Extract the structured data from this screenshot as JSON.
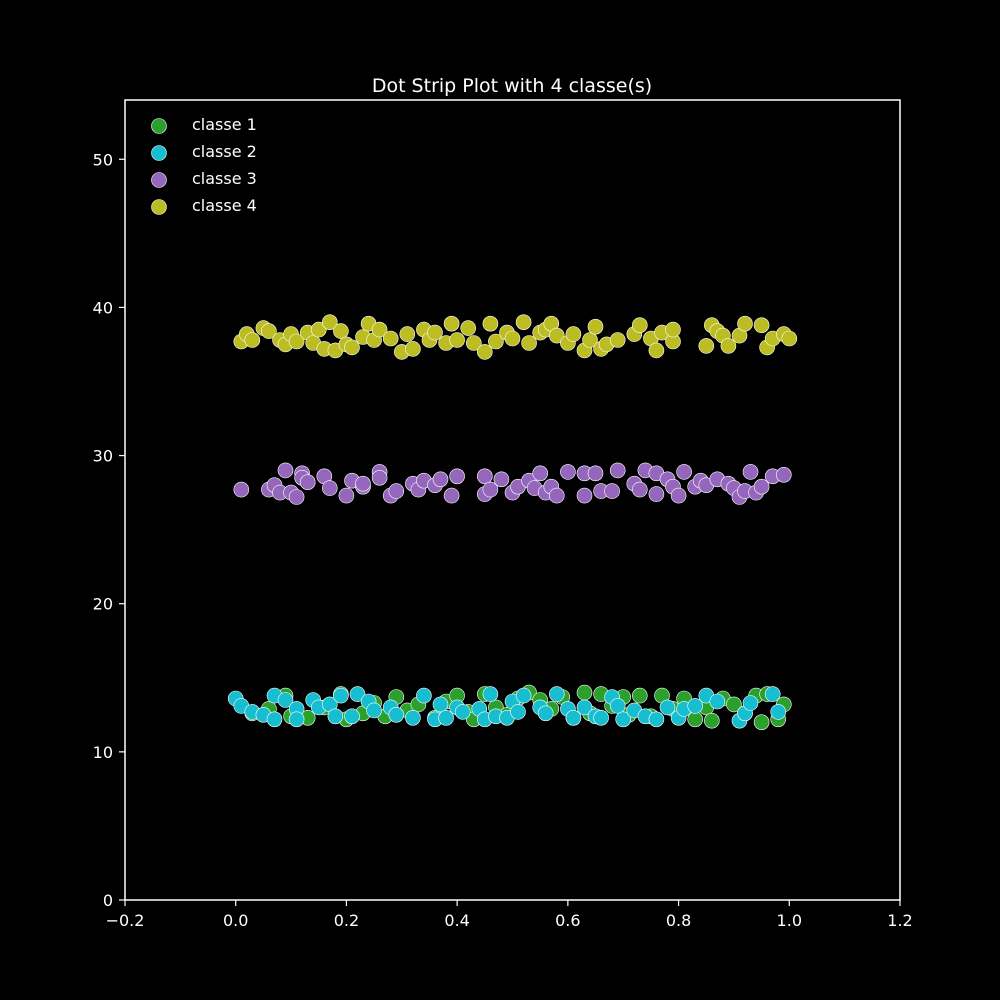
{
  "chart_data": {
    "type": "scatter",
    "title": "Dot Strip Plot with 4 classe(s)",
    "xlabel": "",
    "ylabel": "",
    "xlim": [
      -0.2,
      1.2
    ],
    "ylim": [
      0,
      54
    ],
    "x_ticks": [
      -0.2,
      0.0,
      0.2,
      0.4,
      0.6,
      0.8,
      1.0,
      1.2
    ],
    "x_tick_labels": [
      "−0.2",
      "0.0",
      "0.2",
      "0.4",
      "0.6",
      "0.8",
      "1.0",
      "1.2"
    ],
    "y_ticks": [
      0,
      10,
      20,
      30,
      40,
      50
    ],
    "y_tick_labels": [
      "0",
      "10",
      "20",
      "30",
      "40",
      "50"
    ],
    "grid": false,
    "legend_position": "top-left",
    "background": "#000000",
    "foreground": "#ffffff",
    "series": [
      {
        "name": "classe 1",
        "color": "#2ca02c",
        "points": [
          [
            0.03,
            12.6
          ],
          [
            0.06,
            12.9
          ],
          [
            0.09,
            13.8
          ],
          [
            0.1,
            12.4
          ],
          [
            0.13,
            12.3
          ],
          [
            0.16,
            13.0
          ],
          [
            0.19,
            13.9
          ],
          [
            0.2,
            12.2
          ],
          [
            0.23,
            12.6
          ],
          [
            0.25,
            13.3
          ],
          [
            0.27,
            12.4
          ],
          [
            0.29,
            13.7
          ],
          [
            0.31,
            12.8
          ],
          [
            0.33,
            13.2
          ],
          [
            0.36,
            12.3
          ],
          [
            0.38,
            13.4
          ],
          [
            0.4,
            13.8
          ],
          [
            0.42,
            12.7
          ],
          [
            0.43,
            12.2
          ],
          [
            0.45,
            13.9
          ],
          [
            0.47,
            13.0
          ],
          [
            0.49,
            12.5
          ],
          [
            0.51,
            13.6
          ],
          [
            0.53,
            14.0
          ],
          [
            0.55,
            13.5
          ],
          [
            0.57,
            12.9
          ],
          [
            0.59,
            13.7
          ],
          [
            0.61,
            12.3
          ],
          [
            0.63,
            14.0
          ],
          [
            0.64,
            12.6
          ],
          [
            0.66,
            13.9
          ],
          [
            0.68,
            13.1
          ],
          [
            0.7,
            13.7
          ],
          [
            0.71,
            12.5
          ],
          [
            0.73,
            13.8
          ],
          [
            0.75,
            12.4
          ],
          [
            0.77,
            13.8
          ],
          [
            0.79,
            12.9
          ],
          [
            0.81,
            13.6
          ],
          [
            0.83,
            12.2
          ],
          [
            0.85,
            13.0
          ],
          [
            0.86,
            12.1
          ],
          [
            0.88,
            13.6
          ],
          [
            0.9,
            13.2
          ],
          [
            0.92,
            12.6
          ],
          [
            0.94,
            13.8
          ],
          [
            0.95,
            12.0
          ],
          [
            0.96,
            13.9
          ],
          [
            0.98,
            12.2
          ],
          [
            0.99,
            13.2
          ]
        ]
      },
      {
        "name": "classe 2",
        "color": "#17becf",
        "points": [
          [
            0.0,
            13.6
          ],
          [
            0.01,
            13.1
          ],
          [
            0.03,
            12.7
          ],
          [
            0.05,
            12.5
          ],
          [
            0.07,
            13.8
          ],
          [
            0.07,
            12.2
          ],
          [
            0.09,
            13.5
          ],
          [
            0.11,
            12.9
          ],
          [
            0.11,
            12.2
          ],
          [
            0.14,
            13.5
          ],
          [
            0.15,
            13.0
          ],
          [
            0.17,
            13.2
          ],
          [
            0.18,
            12.4
          ],
          [
            0.19,
            13.8
          ],
          [
            0.21,
            12.4
          ],
          [
            0.22,
            13.9
          ],
          [
            0.24,
            13.4
          ],
          [
            0.25,
            12.8
          ],
          [
            0.28,
            13.0
          ],
          [
            0.29,
            12.5
          ],
          [
            0.32,
            12.3
          ],
          [
            0.34,
            13.8
          ],
          [
            0.36,
            12.2
          ],
          [
            0.37,
            13.2
          ],
          [
            0.38,
            12.3
          ],
          [
            0.4,
            13.0
          ],
          [
            0.41,
            12.7
          ],
          [
            0.44,
            12.9
          ],
          [
            0.45,
            12.2
          ],
          [
            0.46,
            13.9
          ],
          [
            0.47,
            12.4
          ],
          [
            0.49,
            12.3
          ],
          [
            0.5,
            13.4
          ],
          [
            0.51,
            12.7
          ],
          [
            0.52,
            13.8
          ],
          [
            0.55,
            13.0
          ],
          [
            0.56,
            12.6
          ],
          [
            0.58,
            13.9
          ],
          [
            0.6,
            12.9
          ],
          [
            0.61,
            12.3
          ],
          [
            0.63,
            13.0
          ],
          [
            0.65,
            12.4
          ],
          [
            0.66,
            12.3
          ],
          [
            0.68,
            13.7
          ],
          [
            0.69,
            13.1
          ],
          [
            0.7,
            12.2
          ],
          [
            0.72,
            12.8
          ],
          [
            0.74,
            12.4
          ],
          [
            0.76,
            12.2
          ],
          [
            0.78,
            13.0
          ],
          [
            0.8,
            12.3
          ],
          [
            0.81,
            12.9
          ],
          [
            0.83,
            13.1
          ],
          [
            0.85,
            13.8
          ],
          [
            0.87,
            13.4
          ],
          [
            0.91,
            12.1
          ],
          [
            0.92,
            12.6
          ],
          [
            0.93,
            13.3
          ],
          [
            0.97,
            13.9
          ],
          [
            0.98,
            12.7
          ]
        ]
      },
      {
        "name": "classe 3",
        "color": "#9467bd",
        "points": [
          [
            0.01,
            27.7
          ],
          [
            0.06,
            27.7
          ],
          [
            0.07,
            28.0
          ],
          [
            0.08,
            27.5
          ],
          [
            0.09,
            29.0
          ],
          [
            0.1,
            27.5
          ],
          [
            0.11,
            27.2
          ],
          [
            0.12,
            28.8
          ],
          [
            0.12,
            28.5
          ],
          [
            0.13,
            28.2
          ],
          [
            0.16,
            28.6
          ],
          [
            0.17,
            27.8
          ],
          [
            0.2,
            27.3
          ],
          [
            0.21,
            28.3
          ],
          [
            0.23,
            27.9
          ],
          [
            0.23,
            28.1
          ],
          [
            0.26,
            28.9
          ],
          [
            0.26,
            28.5
          ],
          [
            0.28,
            27.3
          ],
          [
            0.29,
            27.6
          ],
          [
            0.32,
            28.1
          ],
          [
            0.33,
            27.7
          ],
          [
            0.34,
            28.3
          ],
          [
            0.36,
            28.0
          ],
          [
            0.37,
            28.4
          ],
          [
            0.39,
            27.3
          ],
          [
            0.4,
            28.6
          ],
          [
            0.45,
            28.6
          ],
          [
            0.45,
            27.4
          ],
          [
            0.46,
            27.7
          ],
          [
            0.48,
            28.4
          ],
          [
            0.5,
            27.5
          ],
          [
            0.51,
            27.9
          ],
          [
            0.53,
            28.3
          ],
          [
            0.54,
            27.8
          ],
          [
            0.55,
            28.8
          ],
          [
            0.56,
            27.5
          ],
          [
            0.57,
            27.9
          ],
          [
            0.58,
            27.3
          ],
          [
            0.6,
            28.9
          ],
          [
            0.63,
            27.3
          ],
          [
            0.63,
            28.8
          ],
          [
            0.65,
            28.8
          ],
          [
            0.66,
            27.6
          ],
          [
            0.68,
            27.6
          ],
          [
            0.69,
            29.0
          ],
          [
            0.72,
            28.1
          ],
          [
            0.73,
            27.7
          ],
          [
            0.74,
            29.0
          ],
          [
            0.76,
            28.8
          ],
          [
            0.76,
            27.4
          ],
          [
            0.78,
            28.4
          ],
          [
            0.79,
            27.9
          ],
          [
            0.8,
            27.3
          ],
          [
            0.81,
            28.9
          ],
          [
            0.83,
            27.9
          ],
          [
            0.84,
            28.3
          ],
          [
            0.85,
            28.0
          ],
          [
            0.87,
            28.4
          ],
          [
            0.89,
            28.1
          ],
          [
            0.9,
            27.8
          ],
          [
            0.91,
            27.2
          ],
          [
            0.92,
            27.6
          ],
          [
            0.93,
            28.9
          ],
          [
            0.94,
            27.5
          ],
          [
            0.95,
            27.9
          ],
          [
            0.97,
            28.6
          ],
          [
            0.99,
            28.7
          ]
        ]
      },
      {
        "name": "classe 4",
        "color": "#bcbd22",
        "points": [
          [
            0.01,
            37.7
          ],
          [
            0.02,
            38.2
          ],
          [
            0.03,
            37.8
          ],
          [
            0.05,
            38.6
          ],
          [
            0.06,
            38.4
          ],
          [
            0.08,
            37.8
          ],
          [
            0.09,
            37.5
          ],
          [
            0.1,
            38.2
          ],
          [
            0.11,
            37.7
          ],
          [
            0.13,
            38.3
          ],
          [
            0.14,
            37.6
          ],
          [
            0.15,
            38.5
          ],
          [
            0.16,
            37.2
          ],
          [
            0.17,
            39.0
          ],
          [
            0.18,
            37.1
          ],
          [
            0.19,
            38.4
          ],
          [
            0.2,
            37.5
          ],
          [
            0.21,
            37.3
          ],
          [
            0.23,
            38.0
          ],
          [
            0.24,
            38.9
          ],
          [
            0.25,
            37.8
          ],
          [
            0.26,
            38.5
          ],
          [
            0.28,
            37.9
          ],
          [
            0.3,
            37.0
          ],
          [
            0.31,
            38.2
          ],
          [
            0.32,
            37.2
          ],
          [
            0.34,
            38.5
          ],
          [
            0.35,
            37.8
          ],
          [
            0.36,
            38.3
          ],
          [
            0.38,
            37.6
          ],
          [
            0.39,
            38.9
          ],
          [
            0.4,
            37.8
          ],
          [
            0.42,
            38.6
          ],
          [
            0.43,
            37.6
          ],
          [
            0.45,
            37.0
          ],
          [
            0.46,
            38.9
          ],
          [
            0.47,
            37.7
          ],
          [
            0.49,
            38.3
          ],
          [
            0.5,
            37.9
          ],
          [
            0.52,
            39.0
          ],
          [
            0.53,
            37.6
          ],
          [
            0.55,
            38.3
          ],
          [
            0.56,
            38.5
          ],
          [
            0.57,
            38.9
          ],
          [
            0.58,
            38.1
          ],
          [
            0.6,
            37.6
          ],
          [
            0.61,
            38.2
          ],
          [
            0.63,
            37.1
          ],
          [
            0.64,
            37.8
          ],
          [
            0.65,
            38.7
          ],
          [
            0.66,
            37.2
          ],
          [
            0.67,
            37.5
          ],
          [
            0.69,
            37.8
          ],
          [
            0.72,
            38.2
          ],
          [
            0.73,
            38.8
          ],
          [
            0.75,
            37.9
          ],
          [
            0.76,
            37.1
          ],
          [
            0.77,
            38.3
          ],
          [
            0.79,
            37.7
          ],
          [
            0.79,
            38.5
          ],
          [
            0.85,
            37.4
          ],
          [
            0.86,
            38.8
          ],
          [
            0.87,
            38.4
          ],
          [
            0.88,
            38.1
          ],
          [
            0.89,
            37.4
          ],
          [
            0.91,
            38.1
          ],
          [
            0.92,
            38.9
          ],
          [
            0.95,
            38.8
          ],
          [
            0.96,
            37.3
          ],
          [
            0.97,
            37.9
          ],
          [
            0.99,
            38.2
          ],
          [
            1.0,
            37.9
          ]
        ]
      }
    ]
  }
}
